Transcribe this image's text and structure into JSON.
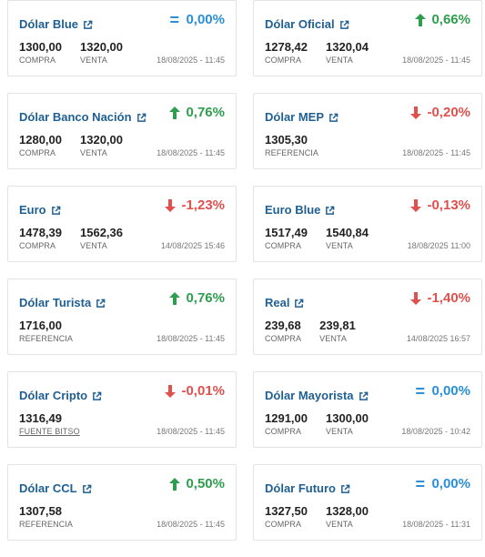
{
  "cards": [
    {
      "title": "Dólar Blue",
      "change": "0,00%",
      "trend": "eq",
      "values": [
        {
          "value": "1300,00",
          "label": "COMPRA"
        },
        {
          "value": "1320,00",
          "label": "VENTA"
        }
      ],
      "date": "18/08/2025 - 11:45"
    },
    {
      "title": "Dólar Oficial",
      "change": "0,66%",
      "trend": "up",
      "values": [
        {
          "value": "1278,42",
          "label": "COMPRA"
        },
        {
          "value": "1320,04",
          "label": "VENTA"
        }
      ],
      "date": "18/08/2025 - 11:45"
    },
    {
      "title": "Dólar Banco Nación",
      "change": "0,76%",
      "trend": "up",
      "values": [
        {
          "value": "1280,00",
          "label": "COMPRA"
        },
        {
          "value": "1320,00",
          "label": "VENTA"
        }
      ],
      "date": "18/08/2025 - 11:45"
    },
    {
      "title": "Dólar MEP",
      "change": "-0,20%",
      "trend": "down",
      "values": [
        {
          "value": "1305,30",
          "label": "REFERENCIA"
        }
      ],
      "date": "18/08/2025 - 11:45"
    },
    {
      "title": "Euro",
      "change": "-1,23%",
      "trend": "down",
      "values": [
        {
          "value": "1478,39",
          "label": "COMPRA"
        },
        {
          "value": "1562,36",
          "label": "VENTA"
        }
      ],
      "date": "14/08/2025 15:46"
    },
    {
      "title": "Euro Blue",
      "change": "-0,13%",
      "trend": "down",
      "values": [
        {
          "value": "1517,49",
          "label": "COMPRA"
        },
        {
          "value": "1540,84",
          "label": "VENTA"
        }
      ],
      "date": "18/08/2025 11:00"
    },
    {
      "title": "Dólar Turista",
      "change": "0,76%",
      "trend": "up",
      "values": [
        {
          "value": "1716,00",
          "label": "REFERENCIA"
        }
      ],
      "date": "18/08/2025 - 11:45"
    },
    {
      "title": "Real",
      "change": "-1,40%",
      "trend": "down",
      "values": [
        {
          "value": "239,68",
          "label": "COMPRA"
        },
        {
          "value": "239,81",
          "label": "VENTA"
        }
      ],
      "date": "14/08/2025 16:57"
    },
    {
      "title": "Dólar Cripto",
      "change": "-0,01%",
      "trend": "down",
      "values": [
        {
          "value": "1316,49",
          "label": "FUENTE BITSO",
          "link": true
        }
      ],
      "date": "18/08/2025 - 11:45"
    },
    {
      "title": "Dólar Mayorista",
      "change": "0,00%",
      "trend": "eq",
      "values": [
        {
          "value": "1291,00",
          "label": "COMPRA"
        },
        {
          "value": "1300,00",
          "label": "VENTA"
        }
      ],
      "date": "18/08/2025 - 10:42"
    },
    {
      "title": "Dólar CCL",
      "change": "0,50%",
      "trend": "up",
      "values": [
        {
          "value": "1307,58",
          "label": "REFERENCIA"
        }
      ],
      "date": "18/08/2025 - 11:45"
    },
    {
      "title": "Dólar Futuro",
      "change": "0,00%",
      "trend": "eq",
      "values": [
        {
          "value": "1327,50",
          "label": "COMPRA"
        },
        {
          "value": "1328,00",
          "label": "VENTA"
        }
      ],
      "date": "18/08/2025 - 11:31"
    }
  ],
  "colors": {
    "up": "#2e9e4e",
    "down": "#e0504d",
    "eq": "#2a8fd6",
    "title": "#1f5f92"
  },
  "icons": {
    "title_link": "external-link-icon",
    "up": "arrow-up-icon",
    "down": "arrow-down-icon",
    "eq": "equals-icon"
  }
}
